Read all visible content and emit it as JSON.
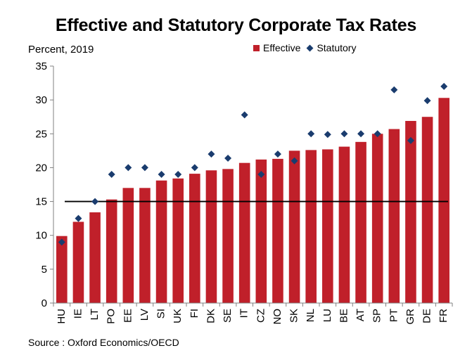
{
  "colors": {
    "effective": "#c0202a",
    "statutory": "#1a3c6e",
    "axis": "#808080",
    "reference_line": "#000000"
  },
  "chart_data": {
    "type": "bar",
    "title": "Effective and Statutory Corporate Tax Rates",
    "subtitle": "Percent, 2019",
    "source": "Source : Oxford Economics/OECD",
    "xlabel": "",
    "ylabel": "",
    "ylim": [
      0,
      35
    ],
    "yticks": [
      0,
      5,
      10,
      15,
      20,
      25,
      30,
      35
    ],
    "legend_position": "top-right",
    "grid": false,
    "reference_line": 15,
    "categories": [
      "HU",
      "IE",
      "LT",
      "PO",
      "EE",
      "LV",
      "SI",
      "UK",
      "FI",
      "DK",
      "SE",
      "IT",
      "CZ",
      "NO",
      "SK",
      "NL",
      "LU",
      "BE",
      "AT",
      "SP",
      "PT",
      "GR",
      "DE",
      "FR"
    ],
    "series": [
      {
        "name": "Effective",
        "type": "bar",
        "values": [
          9.9,
          12.0,
          13.4,
          15.3,
          17.0,
          17.0,
          18.1,
          18.4,
          19.1,
          19.6,
          19.8,
          20.7,
          21.2,
          21.3,
          22.5,
          22.6,
          22.7,
          23.1,
          23.8,
          25.0,
          25.7,
          26.9,
          27.5,
          30.3
        ]
      },
      {
        "name": "Statutory",
        "type": "scatter",
        "values": [
          9.0,
          12.5,
          15.0,
          19.0,
          20.0,
          20.0,
          19.0,
          19.0,
          20.0,
          22.0,
          21.4,
          27.8,
          19.0,
          22.0,
          21.0,
          25.0,
          24.9,
          25.0,
          25.0,
          25.0,
          31.5,
          24.0,
          29.9,
          32.0
        ]
      }
    ]
  }
}
